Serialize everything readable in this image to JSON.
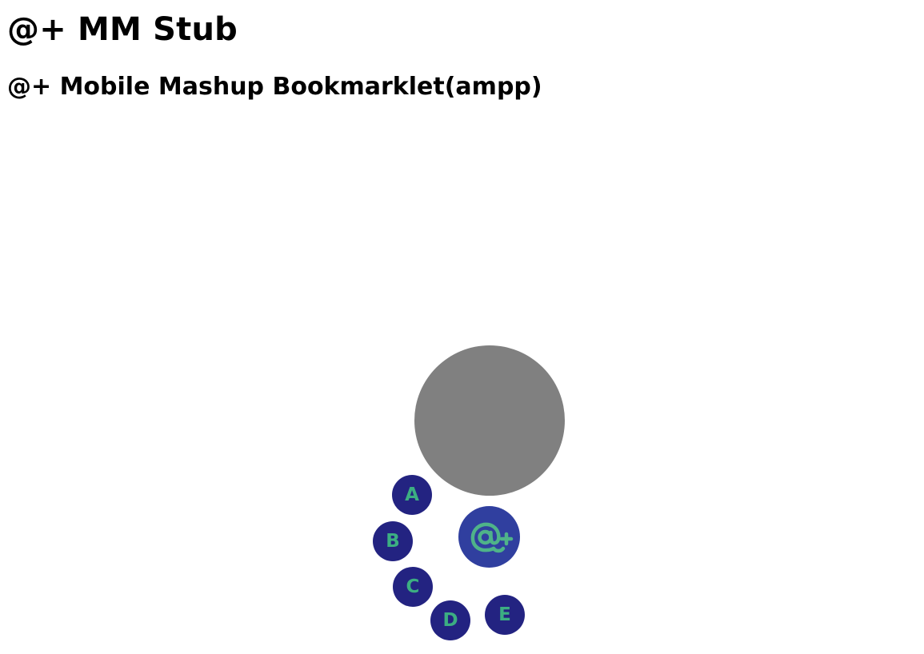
{
  "page": {
    "title": "@+ MM Stub",
    "subtitle": "@+ Mobile Mashup Bookmarklet(ampp)"
  },
  "fab": {
    "icon": "at-plus-logo-icon",
    "icon_text": "@+",
    "menu_items": [
      {
        "label": "A"
      },
      {
        "label": "B"
      },
      {
        "label": "C"
      },
      {
        "label": "D"
      },
      {
        "label": "E"
      }
    ]
  },
  "colors": {
    "background": "#ffffff",
    "preview_circle": "#808080",
    "main_button": "#303f9f",
    "menu_item_bg": "#232381",
    "menu_item_text": "#3cae82",
    "logo_stroke": "#4fb389"
  }
}
